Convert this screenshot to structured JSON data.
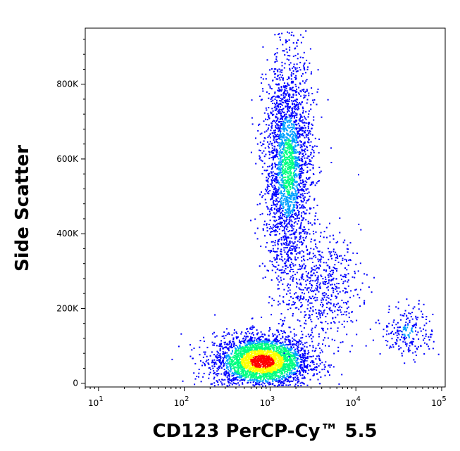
{
  "chart_data": {
    "type": "scatter",
    "subtype": "flow-cytometry-density-dot-plot",
    "xlabel": "CD123 PerCP-Cy™ 5.5",
    "ylabel": "Side Scatter",
    "x_scale": "log",
    "y_scale": "linear",
    "xlim": [
      7,
      110000
    ],
    "ylim": [
      -10000,
      950000
    ],
    "grid": false,
    "x_ticks": [
      {
        "value": 10,
        "base": "10",
        "exp": "1"
      },
      {
        "value": 100,
        "base": "10",
        "exp": "2"
      },
      {
        "value": 1000,
        "base": "10",
        "exp": "3"
      },
      {
        "value": 10000,
        "base": "10",
        "exp": "4"
      },
      {
        "value": 100000,
        "base": "10",
        "exp": "5"
      }
    ],
    "y_ticks": [
      {
        "value": 0,
        "label": "0"
      },
      {
        "value": 200000,
        "label": "200K"
      },
      {
        "value": 400000,
        "label": "400K"
      },
      {
        "value": 600000,
        "label": "600K"
      },
      {
        "value": 800000,
        "label": "800K"
      }
    ],
    "density_colors": [
      "#0000ff",
      "#00a0ff",
      "#00ff80",
      "#ffff00",
      "#ff0000"
    ],
    "populations": [
      {
        "x_center": 800,
        "x_spread": 0.28,
        "y_center": 60000,
        "y_spread": 35000,
        "count": 3200,
        "peak_color": "#ff0000"
      },
      {
        "x_center": 1600,
        "x_spread": 0.14,
        "y_center": 580000,
        "y_spread": 150000,
        "count": 2600,
        "peak_color": "#00ff80"
      },
      {
        "x_center": 4000,
        "x_spread": 0.22,
        "y_center": 260000,
        "y_spread": 70000,
        "count": 550,
        "peak_color": "#0000ff"
      },
      {
        "x_center": 40000,
        "x_spread": 0.15,
        "y_center": 140000,
        "y_spread": 35000,
        "count": 220,
        "peak_color": "#00a0ff"
      }
    ]
  }
}
